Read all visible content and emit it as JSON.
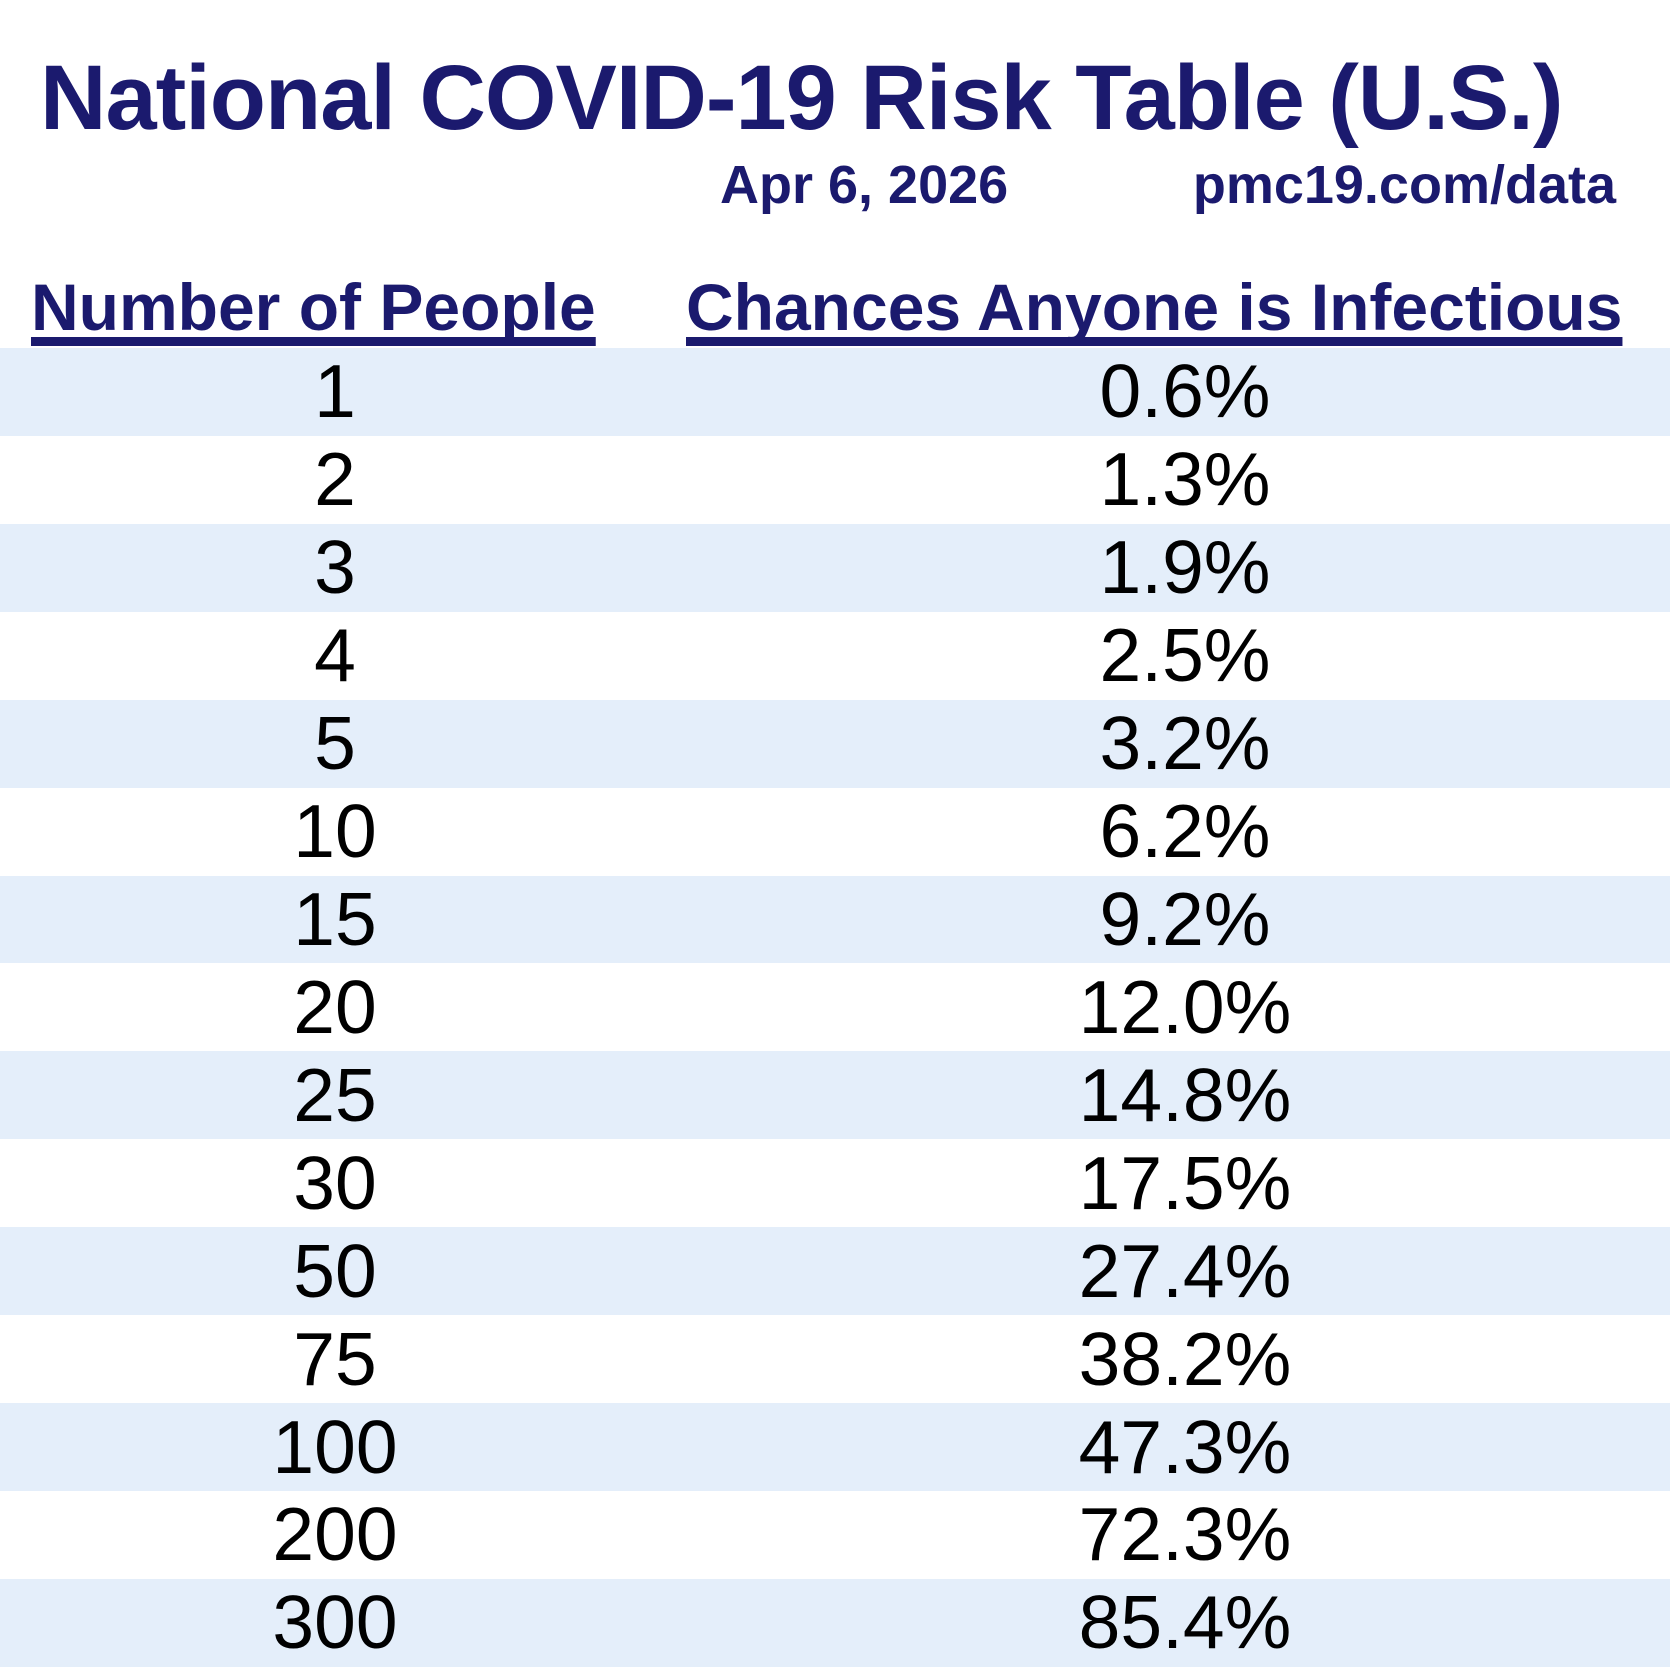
{
  "header": {
    "title": "National COVID-19 Risk Table (U.S.)",
    "date": "Apr 6, 2026",
    "source": "pmc19.com/data"
  },
  "table": {
    "columns": [
      "Number of People",
      "Chances Anyone is Infectious"
    ],
    "rows": [
      {
        "people": "1",
        "chance": "0.6%"
      },
      {
        "people": "2",
        "chance": "1.3%"
      },
      {
        "people": "3",
        "chance": "1.9%"
      },
      {
        "people": "4",
        "chance": "2.5%"
      },
      {
        "people": "5",
        "chance": "3.2%"
      },
      {
        "people": "10",
        "chance": "6.2%"
      },
      {
        "people": "15",
        "chance": "9.2%"
      },
      {
        "people": "20",
        "chance": "12.0%"
      },
      {
        "people": "25",
        "chance": "14.8%"
      },
      {
        "people": "30",
        "chance": "17.5%"
      },
      {
        "people": "50",
        "chance": "27.4%"
      },
      {
        "people": "75",
        "chance": "38.2%"
      },
      {
        "people": "100",
        "chance": "47.3%"
      },
      {
        "people": "200",
        "chance": "72.3%"
      },
      {
        "people": "300",
        "chance": "85.4%"
      }
    ]
  },
  "colors": {
    "navy": "#1b1a6e",
    "stripe": "#e4eefa",
    "text": "#000000",
    "background": "#ffffff"
  },
  "chart_data": {
    "type": "table",
    "title": "National COVID-19 Risk Table (U.S.)",
    "date": "Apr 6, 2026",
    "source": "pmc19.com/data",
    "columns": [
      "Number of People",
      "Chances Anyone is Infectious"
    ],
    "number_of_people": [
      1,
      2,
      3,
      4,
      5,
      10,
      15,
      20,
      25,
      30,
      50,
      75,
      100,
      200,
      300
    ],
    "chance_anyone_infectious_pct": [
      0.6,
      1.3,
      1.9,
      2.5,
      3.2,
      6.2,
      9.2,
      12.0,
      14.8,
      17.5,
      27.4,
      38.2,
      47.3,
      72.3,
      85.4
    ],
    "layout": "alternating row stripes (light blue / white), both columns center-aligned, headers underlined"
  }
}
